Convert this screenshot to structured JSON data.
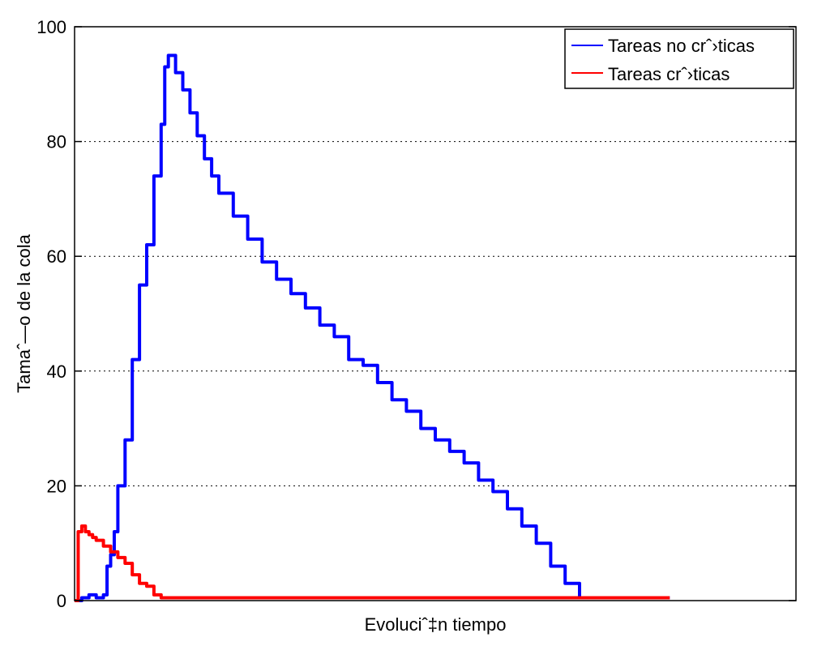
{
  "chart_data": {
    "type": "line",
    "title": "",
    "xlabel": "Evoluciˆ‡n tiempo",
    "ylabel": "Tamaˆ—o de la cola",
    "xlim": [
      0,
      1000
    ],
    "ylim": [
      0,
      100
    ],
    "yticks": [
      0,
      20,
      40,
      60,
      80,
      100
    ],
    "grid": "y-dotted",
    "legend_position": "top-right",
    "series": [
      {
        "name": "Tareas no crˆ›ticas",
        "color": "#0000ff",
        "x": [
          0,
          10,
          20,
          30,
          40,
          45,
          50,
          55,
          60,
          70,
          80,
          90,
          100,
          110,
          120,
          125,
          130,
          140,
          150,
          160,
          170,
          180,
          190,
          200,
          220,
          240,
          260,
          280,
          300,
          320,
          340,
          360,
          380,
          400,
          420,
          440,
          460,
          480,
          500,
          520,
          540,
          560,
          580,
          600,
          620,
          640,
          660,
          680,
          700,
          720,
          740,
          760,
          780,
          800,
          810,
          815,
          825
        ],
        "values": [
          0,
          0.5,
          1,
          0.5,
          1,
          6,
          8,
          12,
          20,
          28,
          42,
          55,
          62,
          74,
          83,
          93,
          95,
          92,
          89,
          85,
          81,
          77,
          74,
          71,
          67,
          63,
          59,
          56,
          53.5,
          51,
          48,
          46,
          42,
          41,
          38,
          35,
          33,
          30,
          28,
          26,
          24,
          21,
          19,
          16,
          13,
          10,
          6,
          3,
          0.5,
          0.5,
          0.5,
          0.5,
          0.5,
          0.5,
          0.5,
          0.5,
          0.5
        ]
      },
      {
        "name": "Tareas crˆ›ticas",
        "color": "#ff0000",
        "x": [
          0,
          5,
          10,
          15,
          20,
          25,
          30,
          40,
          50,
          60,
          70,
          80,
          90,
          100,
          110,
          120,
          130,
          200,
          300,
          400,
          500,
          600,
          700,
          800,
          825
        ],
        "values": [
          0,
          12,
          13,
          12,
          11.5,
          11,
          10.5,
          9.5,
          8.5,
          7.5,
          6.5,
          4.5,
          3,
          2.5,
          1,
          0.5,
          0.5,
          0.5,
          0.5,
          0.5,
          0.5,
          0.5,
          0.5,
          0.5,
          0.5
        ]
      }
    ]
  }
}
